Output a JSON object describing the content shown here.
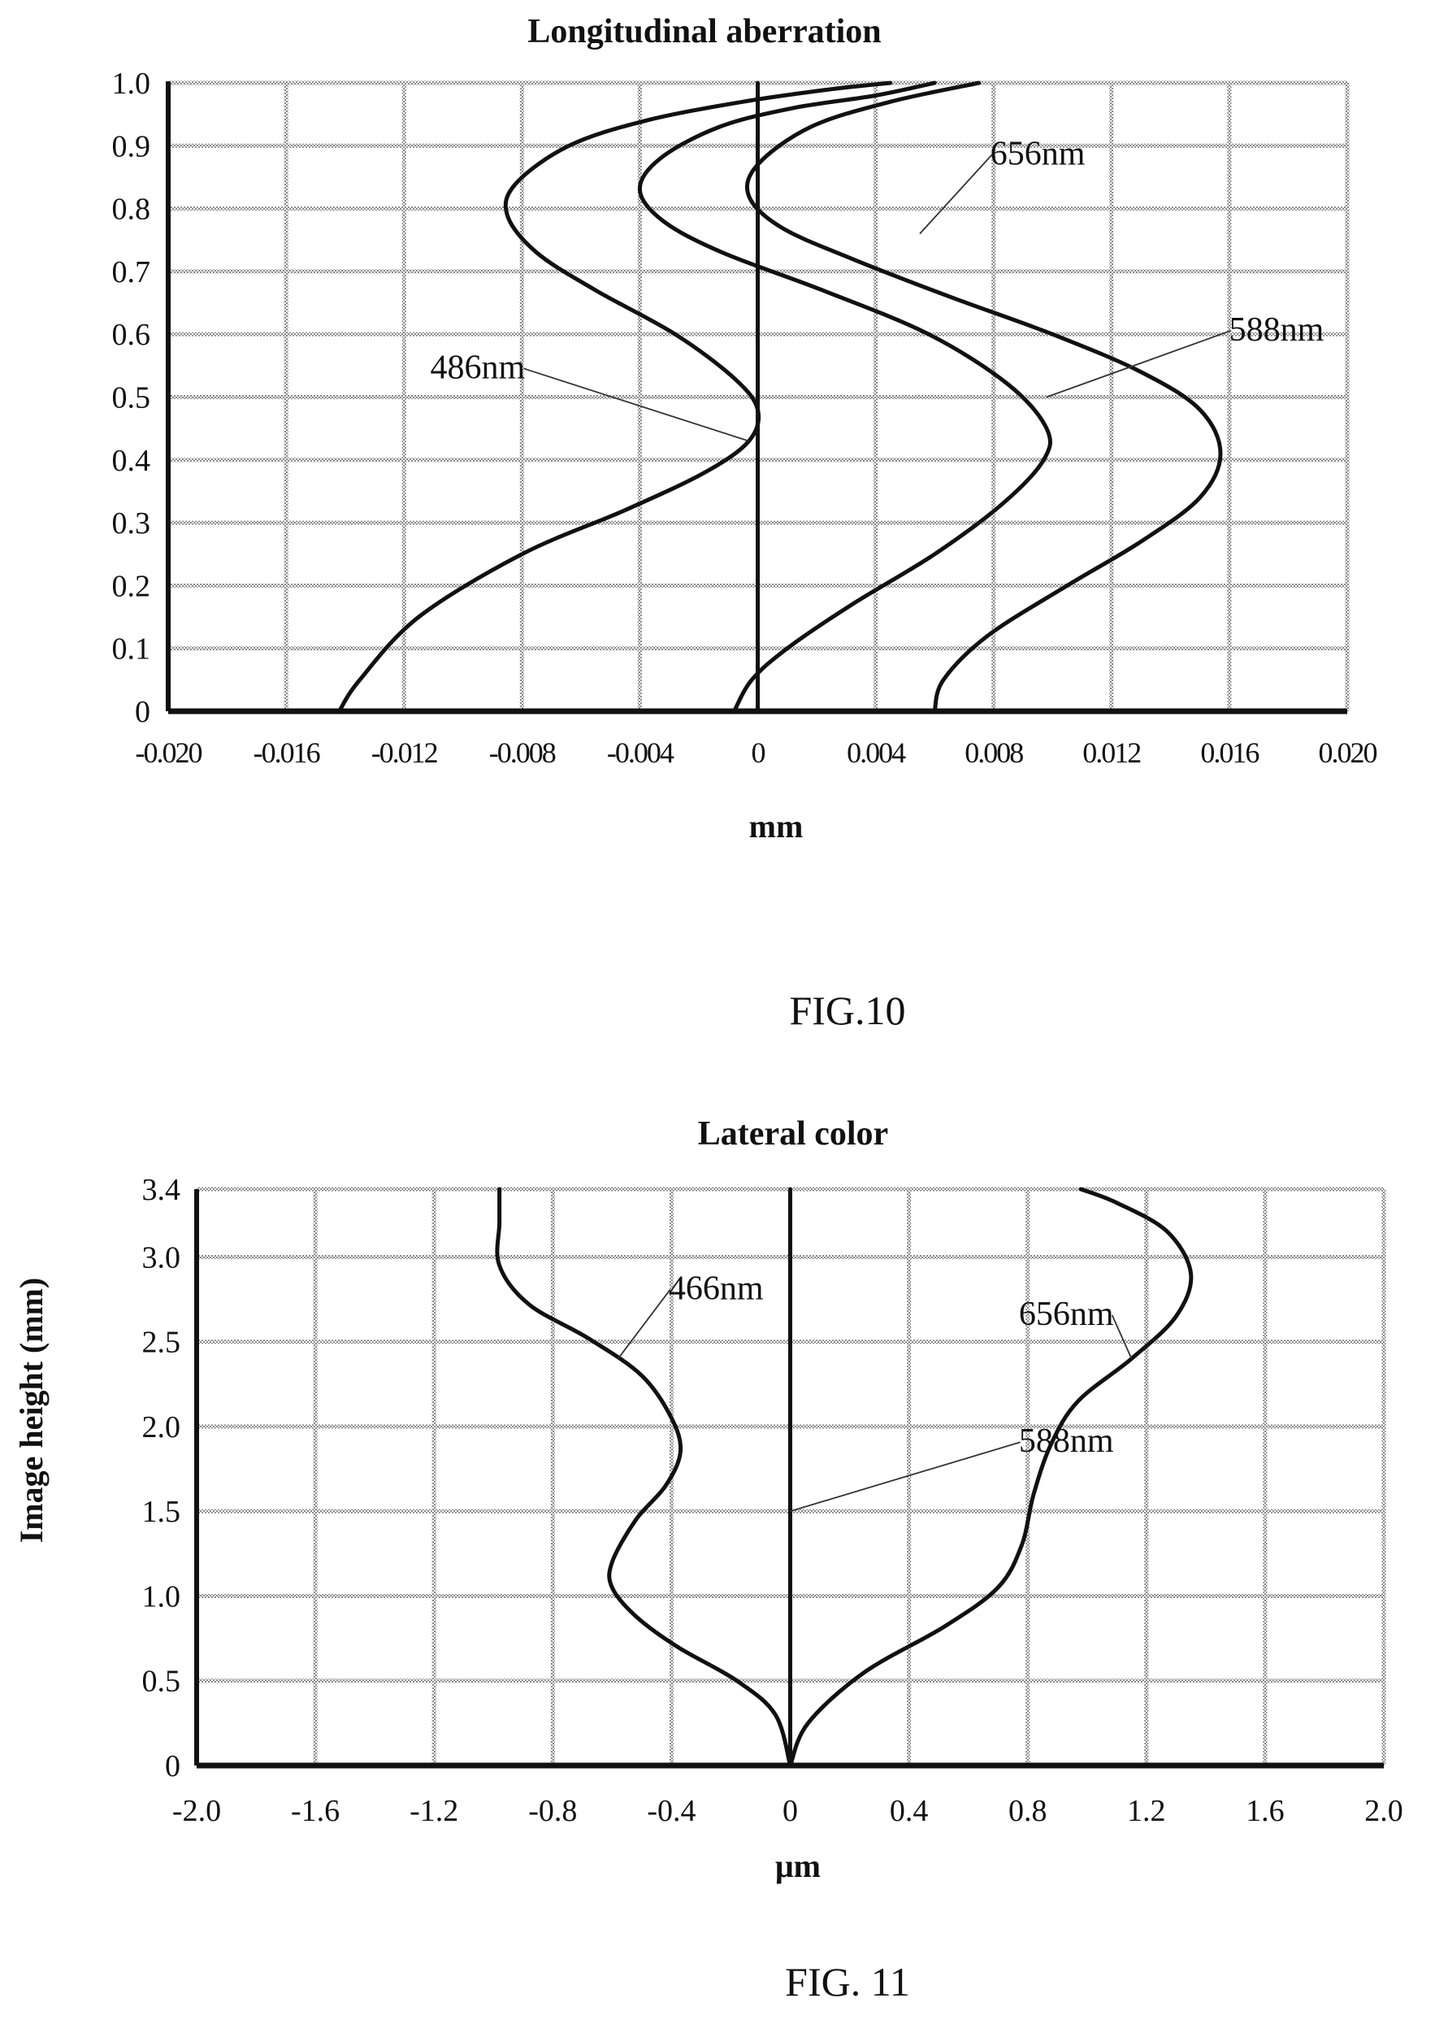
{
  "figures": [
    {
      "caption": "FIG.10",
      "chart_data": {
        "type": "line",
        "title": "Longitudinal aberration",
        "xlabel": "mm",
        "ylabel": "",
        "xlim": [
          -0.02,
          0.02
        ],
        "ylim": [
          0,
          1.0
        ],
        "xticks": [
          -0.02,
          -0.016,
          -0.012,
          -0.008,
          -0.004,
          0,
          0.004,
          0.008,
          0.012,
          0.016,
          0.02
        ],
        "xtick_labels": [
          "-0.020",
          "-0.016",
          "-0.012",
          "-0.008",
          "-0.004",
          "0",
          "0.004",
          "0.008",
          "0.012",
          "0.016",
          "0.020"
        ],
        "yticks": [
          0,
          0.1,
          0.2,
          0.3,
          0.4,
          0.5,
          0.6,
          0.7,
          0.8,
          0.9,
          1.0
        ],
        "ytick_labels": [
          "0",
          "0.1",
          "0.2",
          "0.3",
          "0.4",
          "0.5",
          "0.6",
          "0.7",
          "0.8",
          "0.9",
          "1.0"
        ],
        "grid": true,
        "series": [
          {
            "name": "486nm",
            "points": [
              [
                -0.0142,
                0.0
              ],
              [
                -0.0135,
                0.05
              ],
              [
                -0.0115,
                0.15
              ],
              [
                -0.008,
                0.25
              ],
              [
                -0.0045,
                0.32
              ],
              [
                -0.0018,
                0.38
              ],
              [
                -0.0003,
                0.43
              ],
              [
                0.0,
                0.48
              ],
              [
                -0.0008,
                0.53
              ],
              [
                -0.0028,
                0.6
              ],
              [
                -0.0055,
                0.67
              ],
              [
                -0.0075,
                0.73
              ],
              [
                -0.0085,
                0.79
              ],
              [
                -0.0082,
                0.84
              ],
              [
                -0.0064,
                0.9
              ],
              [
                -0.0038,
                0.94
              ],
              [
                -0.0005,
                0.97
              ],
              [
                0.0025,
                0.99
              ],
              [
                0.0045,
                1.0
              ]
            ]
          },
          {
            "name": "588nm",
            "points": [
              [
                -0.0008,
                0.0
              ],
              [
                -0.0002,
                0.05
              ],
              [
                0.001,
                0.1
              ],
              [
                0.0032,
                0.17
              ],
              [
                0.006,
                0.25
              ],
              [
                0.0083,
                0.33
              ],
              [
                0.0097,
                0.4
              ],
              [
                0.0098,
                0.45
              ],
              [
                0.0085,
                0.52
              ],
              [
                0.0058,
                0.6
              ],
              [
                0.0022,
                0.67
              ],
              [
                -0.0012,
                0.73
              ],
              [
                -0.0032,
                0.78
              ],
              [
                -0.004,
                0.83
              ],
              [
                -0.0033,
                0.88
              ],
              [
                -0.0013,
                0.93
              ],
              [
                0.0012,
                0.96
              ],
              [
                0.004,
                0.98
              ],
              [
                0.006,
                1.0
              ]
            ]
          },
          {
            "name": "656nm",
            "points": [
              [
                0.006,
                0.0
              ],
              [
                0.0063,
                0.05
              ],
              [
                0.0078,
                0.12
              ],
              [
                0.0105,
                0.2
              ],
              [
                0.013,
                0.27
              ],
              [
                0.015,
                0.34
              ],
              [
                0.0157,
                0.41
              ],
              [
                0.015,
                0.48
              ],
              [
                0.013,
                0.54
              ],
              [
                0.01,
                0.6
              ],
              [
                0.0065,
                0.66
              ],
              [
                0.0032,
                0.72
              ],
              [
                0.0008,
                0.77
              ],
              [
                -0.0003,
                0.82
              ],
              [
                0.0,
                0.87
              ],
              [
                0.0018,
                0.93
              ],
              [
                0.0045,
                0.97
              ],
              [
                0.0075,
                1.0
              ]
            ]
          },
          {
            "name": "",
            "points": [
              [
                0.0,
                0.0
              ],
              [
                0.0,
                1.0
              ]
            ]
          }
        ],
        "annotations": [
          {
            "text": "656nm",
            "x": 0.0095,
            "y": 0.87,
            "pointer_to": [
              0.0055,
              0.76
            ]
          },
          {
            "text": "588nm",
            "x": 0.0176,
            "y": 0.59,
            "pointer_to": [
              0.0098,
              0.5
            ]
          },
          {
            "text": "486nm",
            "x": -0.0095,
            "y": 0.53,
            "pointer_to": [
              -0.0003,
              0.43
            ]
          }
        ]
      }
    },
    {
      "caption": "FIG. 11",
      "chart_data": {
        "type": "line",
        "title": "Lateral color",
        "xlabel": "μm",
        "ylabel": "Image height (mm)",
        "xlim": [
          -2.0,
          2.0
        ],
        "ylim": [
          0,
          3.4
        ],
        "xticks": [
          -2.0,
          -1.6,
          -1.2,
          -0.8,
          -0.4,
          0,
          0.4,
          0.8,
          1.2,
          1.6,
          2.0
        ],
        "xtick_labels": [
          "-2.0",
          "-1.6",
          "-1.2",
          "-0.8",
          "-0.4",
          "0",
          "0.4",
          "0.8",
          "1.2",
          "1.6",
          "2.0"
        ],
        "yticks": [
          0,
          0.5,
          1.0,
          1.5,
          2.0,
          2.5,
          3.0,
          3.4
        ],
        "ytick_labels": [
          "0",
          "0.5",
          "1.0",
          "1.5",
          "2.0",
          "2.5",
          "3.0",
          "3.4"
        ],
        "grid": true,
        "series": [
          {
            "name": "466nm",
            "points": [
              [
                0.0,
                0.0
              ],
              [
                -0.05,
                0.3
              ],
              [
                -0.18,
                0.5
              ],
              [
                -0.38,
                0.7
              ],
              [
                -0.52,
                0.88
              ],
              [
                -0.6,
                1.05
              ],
              [
                -0.6,
                1.2
              ],
              [
                -0.52,
                1.45
              ],
              [
                -0.42,
                1.65
              ],
              [
                -0.37,
                1.85
              ],
              [
                -0.4,
                2.05
              ],
              [
                -0.5,
                2.3
              ],
              [
                -0.68,
                2.52
              ],
              [
                -0.88,
                2.72
              ],
              [
                -0.98,
                2.95
              ],
              [
                -0.98,
                3.2
              ],
              [
                -0.98,
                3.4
              ]
            ]
          },
          {
            "name": "588nm",
            "points": [
              [
                0.0,
                0.0
              ],
              [
                0.0,
                3.4
              ]
            ]
          },
          {
            "name": "656nm",
            "points": [
              [
                0.0,
                0.0
              ],
              [
                0.06,
                0.25
              ],
              [
                0.25,
                0.55
              ],
              [
                0.52,
                0.82
              ],
              [
                0.7,
                1.05
              ],
              [
                0.78,
                1.3
              ],
              [
                0.82,
                1.6
              ],
              [
                0.88,
                1.9
              ],
              [
                0.97,
                2.15
              ],
              [
                1.15,
                2.4
              ],
              [
                1.3,
                2.65
              ],
              [
                1.35,
                2.9
              ],
              [
                1.27,
                3.15
              ],
              [
                1.1,
                3.32
              ],
              [
                0.98,
                3.4
              ]
            ]
          }
        ],
        "annotations": [
          {
            "text": "466nm",
            "x": -0.25,
            "y": 2.75,
            "pointer_to": [
              -0.58,
              2.4
            ]
          },
          {
            "text": "656nm",
            "x": 0.93,
            "y": 2.6,
            "pointer_to": [
              1.15,
              2.4
            ]
          },
          {
            "text": "588nm",
            "x": 0.93,
            "y": 1.85,
            "pointer_to": [
              0.0,
              1.5
            ]
          }
        ]
      }
    }
  ]
}
